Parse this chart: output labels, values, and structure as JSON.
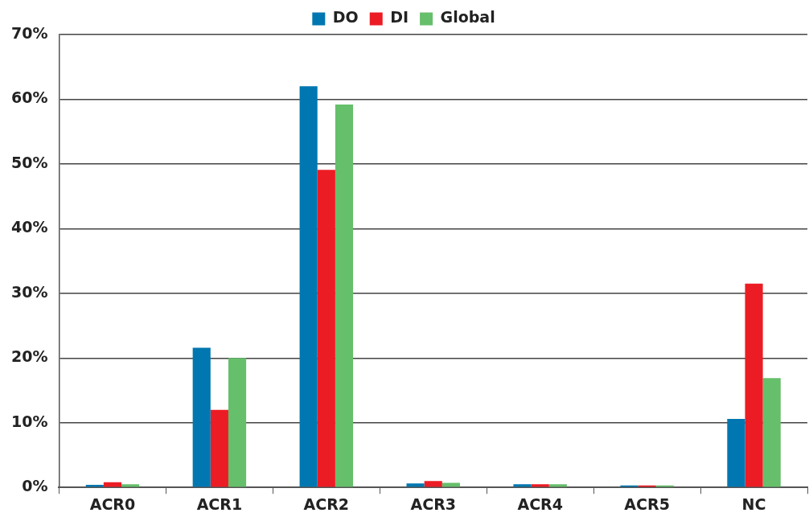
{
  "chart_data": {
    "type": "bar",
    "categories": [
      "ACR0",
      "ACR1",
      "ACR2",
      "ACR3",
      "ACR4",
      "ACR5",
      "NC"
    ],
    "series": [
      {
        "name": "DO",
        "color": "#0077b0",
        "values": [
          0.4,
          21.6,
          62.0,
          0.6,
          0.5,
          0.3,
          10.6
        ]
      },
      {
        "name": "DI",
        "color": "#ec1c24",
        "values": [
          0.8,
          12.0,
          49.1,
          1.0,
          0.5,
          0.3,
          31.5
        ]
      },
      {
        "name": "Global",
        "color": "#66bf6b",
        "values": [
          0.5,
          20.0,
          59.2,
          0.7,
          0.5,
          0.3,
          16.9
        ]
      }
    ],
    "ylim": [
      0,
      70
    ],
    "yticks": [
      {
        "value": 0,
        "label": "0%"
      },
      {
        "value": 10,
        "label": "10%"
      },
      {
        "value": 20,
        "label": "20%"
      },
      {
        "value": 30,
        "label": "30%"
      },
      {
        "value": 40,
        "label": "40%"
      },
      {
        "value": 50,
        "label": "50%"
      },
      {
        "value": 60,
        "label": "60%"
      },
      {
        "value": 70,
        "label": "70%"
      }
    ],
    "grid": "y",
    "legend": "top"
  }
}
